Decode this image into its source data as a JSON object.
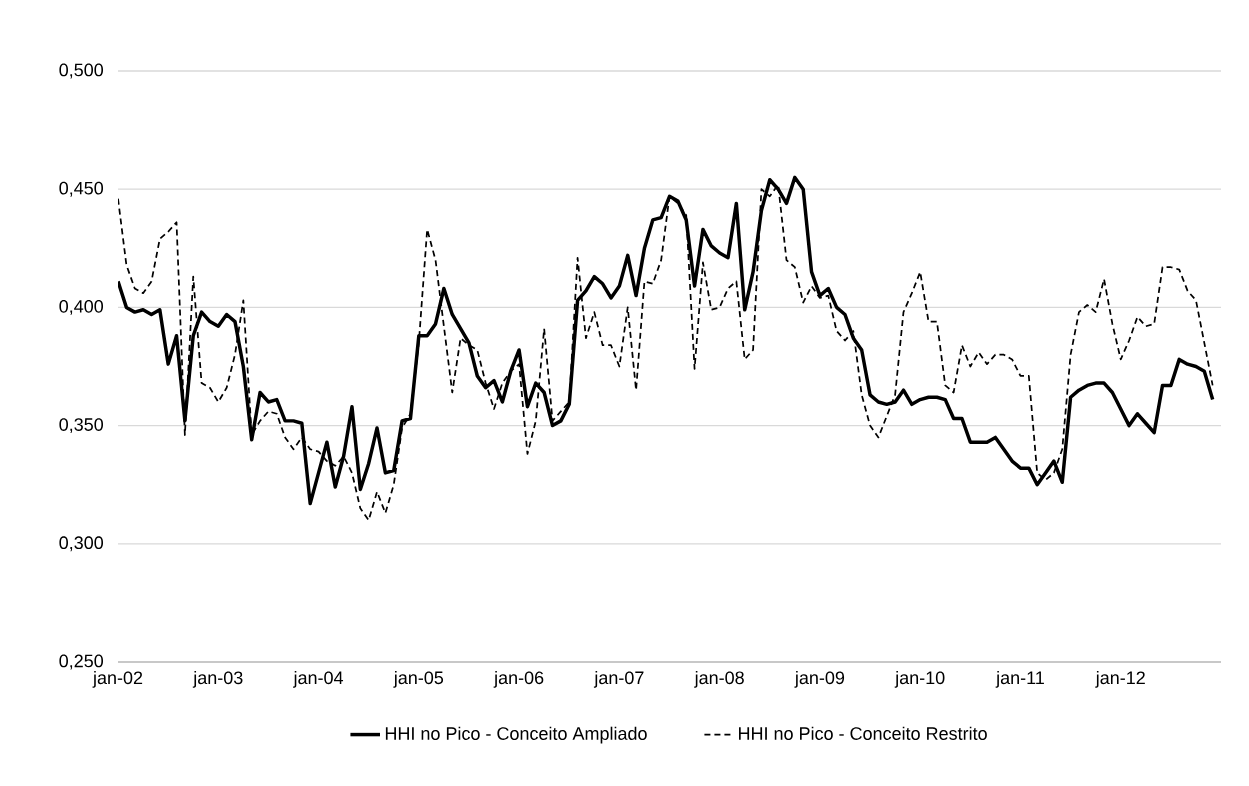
{
  "chart_data": {
    "type": "line",
    "x": [
      "2002-01",
      "2002-02",
      "2002-03",
      "2002-04",
      "2002-05",
      "2002-06",
      "2002-07",
      "2002-08",
      "2002-09",
      "2002-10",
      "2002-11",
      "2002-12",
      "2003-01",
      "2003-02",
      "2003-03",
      "2003-04",
      "2003-05",
      "2003-06",
      "2003-07",
      "2003-08",
      "2003-09",
      "2003-10",
      "2003-11",
      "2003-12",
      "2004-01",
      "2004-02",
      "2004-03",
      "2004-04",
      "2004-05",
      "2004-06",
      "2004-07",
      "2004-08",
      "2004-09",
      "2004-10",
      "2004-11",
      "2004-12",
      "2005-01",
      "2005-02",
      "2005-03",
      "2005-04",
      "2005-05",
      "2005-06",
      "2005-07",
      "2005-08",
      "2005-09",
      "2005-10",
      "2005-11",
      "2005-12",
      "2006-01",
      "2006-02",
      "2006-03",
      "2006-04",
      "2006-05",
      "2006-06",
      "2006-07",
      "2006-08",
      "2006-09",
      "2006-10",
      "2006-11",
      "2006-12",
      "2007-01",
      "2007-02",
      "2007-03",
      "2007-04",
      "2007-05",
      "2007-06",
      "2007-07",
      "2007-08",
      "2007-09",
      "2007-10",
      "2007-11",
      "2007-12",
      "2008-01",
      "2008-02",
      "2008-03",
      "2008-04",
      "2008-05",
      "2008-06",
      "2008-07",
      "2008-08",
      "2008-09",
      "2008-10",
      "2008-11",
      "2008-12",
      "2009-01",
      "2009-02",
      "2009-03",
      "2009-04",
      "2009-05",
      "2009-06",
      "2009-07",
      "2009-08",
      "2009-09",
      "2009-10",
      "2009-11",
      "2009-12",
      "2010-01",
      "2010-02",
      "2010-03",
      "2010-04",
      "2010-05",
      "2010-06",
      "2010-07",
      "2010-08",
      "2010-09",
      "2010-10",
      "2010-11",
      "2010-12",
      "2011-01",
      "2011-02",
      "2011-03",
      "2011-04",
      "2011-05",
      "2011-06",
      "2011-07",
      "2011-08",
      "2011-09",
      "2011-10",
      "2011-11",
      "2011-12",
      "2012-01",
      "2012-02",
      "2012-03",
      "2012-04",
      "2012-05",
      "2012-06",
      "2012-07",
      "2012-08",
      "2012-09",
      "2012-10",
      "2012-11",
      "2012-12"
    ],
    "series": [
      {
        "name": "HHI no Pico - Conceito Ampliado",
        "color": "#000000",
        "line_style": "solid",
        "values": [
          0.411,
          0.4,
          0.398,
          0.399,
          0.397,
          0.399,
          0.376,
          0.388,
          0.352,
          0.388,
          0.398,
          0.394,
          0.392,
          0.397,
          0.394,
          0.375,
          0.344,
          0.364,
          0.36,
          0.361,
          0.352,
          0.352,
          0.351,
          0.317,
          0.33,
          0.343,
          0.324,
          0.337,
          0.358,
          0.323,
          0.334,
          0.349,
          0.33,
          0.331,
          0.352,
          0.353,
          0.388,
          0.388,
          0.393,
          0.408,
          0.397,
          0.391,
          0.385,
          0.371,
          0.366,
          0.369,
          0.36,
          0.373,
          0.382,
          0.358,
          0.368,
          0.364,
          0.35,
          0.352,
          0.359,
          0.403,
          0.407,
          0.413,
          0.41,
          0.404,
          0.409,
          0.422,
          0.405,
          0.425,
          0.437,
          0.438,
          0.447,
          0.445,
          0.437,
          0.409,
          0.433,
          0.426,
          0.423,
          0.421,
          0.444,
          0.399,
          0.415,
          0.441,
          0.454,
          0.45,
          0.444,
          0.455,
          0.45,
          0.415,
          0.405,
          0.408,
          0.4,
          0.397,
          0.387,
          0.382,
          0.363,
          0.36,
          0.359,
          0.36,
          0.365,
          0.359,
          0.361,
          0.362,
          0.362,
          0.361,
          0.353,
          0.353,
          0.343,
          0.343,
          0.343,
          0.345,
          0.34,
          0.335,
          0.332,
          0.332,
          0.325,
          0.33,
          0.335,
          0.326,
          0.362,
          0.365,
          0.367,
          0.368,
          0.368,
          0.364,
          0.357,
          0.35,
          0.355,
          0.351,
          0.347,
          0.367,
          0.367,
          0.378,
          0.376,
          0.375,
          0.373,
          0.361
        ]
      },
      {
        "name": "HHI no Pico - Conceito Restrito",
        "color": "#000000",
        "line_style": "dashed",
        "values": [
          0.446,
          0.418,
          0.408,
          0.406,
          0.411,
          0.429,
          0.432,
          0.436,
          0.346,
          0.413,
          0.368,
          0.366,
          0.36,
          0.366,
          0.38,
          0.403,
          0.346,
          0.352,
          0.356,
          0.355,
          0.345,
          0.34,
          0.345,
          0.34,
          0.339,
          0.335,
          0.333,
          0.337,
          0.33,
          0.315,
          0.31,
          0.322,
          0.313,
          0.325,
          0.349,
          0.355,
          0.385,
          0.433,
          0.42,
          0.392,
          0.364,
          0.387,
          0.384,
          0.382,
          0.368,
          0.357,
          0.368,
          0.373,
          0.376,
          0.338,
          0.352,
          0.391,
          0.352,
          0.356,
          0.36,
          0.421,
          0.387,
          0.398,
          0.384,
          0.384,
          0.375,
          0.4,
          0.365,
          0.411,
          0.41,
          0.42,
          0.447,
          0.444,
          0.439,
          0.374,
          0.419,
          0.399,
          0.4,
          0.408,
          0.411,
          0.378,
          0.382,
          0.45,
          0.447,
          0.452,
          0.42,
          0.417,
          0.402,
          0.409,
          0.404,
          0.405,
          0.39,
          0.386,
          0.39,
          0.363,
          0.35,
          0.345,
          0.354,
          0.363,
          0.398,
          0.406,
          0.415,
          0.394,
          0.394,
          0.367,
          0.364,
          0.384,
          0.375,
          0.381,
          0.376,
          0.38,
          0.38,
          0.378,
          0.371,
          0.371,
          0.33,
          0.327,
          0.33,
          0.34,
          0.38,
          0.398,
          0.401,
          0.398,
          0.412,
          0.393,
          0.378,
          0.386,
          0.396,
          0.392,
          0.393,
          0.417,
          0.417,
          0.416,
          0.407,
          0.403,
          0.385,
          0.367
        ]
      }
    ],
    "xlim": [
      "2002-01",
      "2013-01"
    ],
    "xticks": [
      {
        "value": "2002-01",
        "label": "jan-02"
      },
      {
        "value": "2003-01",
        "label": "jan-03"
      },
      {
        "value": "2004-01",
        "label": "jan-04"
      },
      {
        "value": "2005-01",
        "label": "jan-05"
      },
      {
        "value": "2006-01",
        "label": "jan-06"
      },
      {
        "value": "2007-01",
        "label": "jan-07"
      },
      {
        "value": "2008-01",
        "label": "jan-08"
      },
      {
        "value": "2009-01",
        "label": "jan-09"
      },
      {
        "value": "2010-01",
        "label": "jan-10"
      },
      {
        "value": "2011-01",
        "label": "jan-11"
      },
      {
        "value": "2012-01",
        "label": "jan-12"
      }
    ],
    "ylim": [
      0.25,
      0.5
    ],
    "yticks": [
      {
        "value": 0.25,
        "label": "0,250"
      },
      {
        "value": 0.3,
        "label": "0,300"
      },
      {
        "value": 0.35,
        "label": "0,350"
      },
      {
        "value": 0.4,
        "label": "0,400"
      },
      {
        "value": 0.45,
        "label": "0,450"
      },
      {
        "value": 0.5,
        "label": "0,500"
      }
    ],
    "grid": "y",
    "legend": "bottom"
  }
}
